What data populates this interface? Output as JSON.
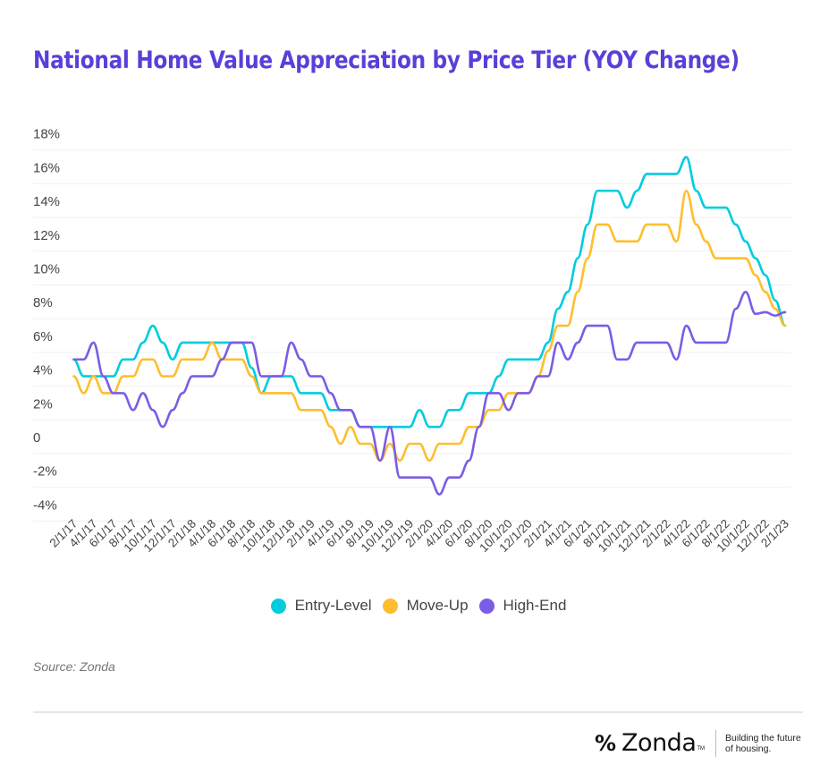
{
  "chart_data": {
    "type": "line",
    "title": "National Home Value Appreciation by Price Tier (YOY Change)",
    "xlabel": "",
    "ylabel": "",
    "ylim": [
      -4,
      18
    ],
    "y_ticks": [
      {
        "value": 18,
        "label": "18%"
      },
      {
        "value": 16,
        "label": "16%"
      },
      {
        "value": 14,
        "label": "14%"
      },
      {
        "value": 12,
        "label": "12%"
      },
      {
        "value": 10,
        "label": "10%"
      },
      {
        "value": 8,
        "label": "8%"
      },
      {
        "value": 6,
        "label": "6%"
      },
      {
        "value": 4,
        "label": "4%"
      },
      {
        "value": 2,
        "label": "2%"
      },
      {
        "value": 0,
        "label": "0"
      },
      {
        "value": -2,
        "label": "-2%"
      },
      {
        "value": -4,
        "label": "-4%"
      }
    ],
    "grid": true,
    "legend_position": "bottom-center",
    "x": [
      "2/1/17",
      "3/1/17",
      "4/1/17",
      "5/1/17",
      "6/1/17",
      "7/1/17",
      "8/1/17",
      "9/1/17",
      "10/1/17",
      "11/1/17",
      "12/1/17",
      "1/1/18",
      "2/1/18",
      "3/1/18",
      "4/1/18",
      "5/1/18",
      "6/1/18",
      "7/1/18",
      "8/1/18",
      "9/1/18",
      "10/1/18",
      "11/1/18",
      "12/1/18",
      "1/1/19",
      "2/1/19",
      "3/1/19",
      "4/1/19",
      "5/1/19",
      "6/1/19",
      "7/1/19",
      "8/1/19",
      "9/1/19",
      "10/1/19",
      "11/1/19",
      "12/1/19",
      "1/1/20",
      "2/1/20",
      "3/1/20",
      "4/1/20",
      "5/1/20",
      "6/1/20",
      "7/1/20",
      "8/1/20",
      "9/1/20",
      "10/1/20",
      "11/1/20",
      "12/1/20",
      "1/1/21",
      "2/1/21",
      "3/1/21",
      "4/1/21",
      "5/1/21",
      "6/1/21",
      "7/1/21",
      "8/1/21",
      "9/1/21",
      "10/1/21",
      "11/1/21",
      "12/1/21",
      "1/1/22",
      "2/1/22",
      "3/1/22",
      "4/1/22",
      "5/1/22",
      "6/1/22",
      "7/1/22",
      "8/1/22",
      "9/1/22",
      "10/1/22",
      "11/1/22",
      "12/1/22",
      "1/1/23",
      "2/1/23"
    ],
    "x_tick_labels": [
      "2/1/17",
      "4/1/17",
      "6/1/17",
      "8/1/17",
      "10/1/17",
      "12/1/17",
      "2/1/18",
      "4/1/18",
      "6/1/18",
      "8/1/18",
      "10/1/18",
      "12/1/18",
      "2/1/19",
      "4/1/19",
      "6/1/19",
      "8/1/19",
      "10/1/19",
      "12/1/19",
      "2/1/20",
      "4/1/20",
      "6/1/20",
      "8/1/20",
      "10/1/20",
      "12/1/20",
      "2/1/21",
      "4/1/21",
      "6/1/21",
      "8/1/21",
      "10/1/21",
      "12/1/21",
      "2/1/22",
      "4/1/22",
      "6/1/22",
      "8/1/22",
      "10/1/22",
      "12/1/22",
      "2/1/23"
    ],
    "series": [
      {
        "name": "Entry-Level",
        "color": "#00CCDD",
        "values": [
          5,
          4,
          4,
          4,
          4,
          5,
          5,
          6,
          7,
          6,
          5,
          6,
          6,
          6,
          6,
          6,
          6,
          6,
          4.5,
          3,
          4,
          4,
          4,
          3,
          3,
          3,
          2,
          2,
          2,
          1,
          1,
          1,
          1,
          1,
          1,
          2,
          1,
          1,
          2,
          2,
          3,
          3,
          3,
          4,
          5,
          5,
          5,
          5,
          6,
          8,
          9,
          11,
          13,
          15,
          15,
          15,
          14,
          15,
          16,
          16,
          16,
          16,
          17,
          15,
          14,
          14,
          14,
          13,
          12,
          11,
          10,
          8.5,
          7
        ]
      },
      {
        "name": "Move-Up",
        "color": "#FFBE2E",
        "values": [
          4,
          3,
          4,
          3,
          3,
          4,
          4,
          5,
          5,
          4,
          4,
          5,
          5,
          5,
          6,
          5,
          5,
          5,
          4,
          3,
          3,
          3,
          3,
          2,
          2,
          2,
          1,
          0,
          1,
          0,
          0,
          -1,
          0,
          -1,
          0,
          0,
          -1,
          0,
          0,
          0,
          1,
          1,
          2,
          2,
          3,
          3,
          3,
          4,
          5.5,
          7,
          7,
          9,
          11,
          13,
          13,
          12,
          12,
          12,
          13,
          13,
          13,
          12,
          15,
          13,
          12,
          11,
          11,
          11,
          11,
          10,
          9,
          8,
          7
        ]
      },
      {
        "name": "High-End",
        "color": "#7B5CE6",
        "values": [
          5,
          5,
          6,
          4,
          3,
          3,
          2,
          3,
          2,
          1,
          2,
          3,
          4,
          4,
          4,
          5,
          6,
          6,
          6,
          4,
          4,
          4,
          6,
          5,
          4,
          4,
          3,
          2,
          2,
          1,
          1,
          -1,
          1,
          -2,
          -2,
          -2,
          -2,
          -3,
          -2,
          -2,
          -1,
          1,
          3,
          3,
          2,
          3,
          3,
          4,
          4,
          6,
          5,
          6,
          7,
          7,
          7,
          5,
          5,
          6,
          6,
          6,
          6,
          5,
          7,
          6,
          6,
          6,
          6,
          8,
          9,
          7.7,
          7.8,
          7.6,
          7.8
        ]
      }
    ]
  },
  "legend": {
    "items": [
      {
        "label": "Entry-Level",
        "color": "#00CCDD"
      },
      {
        "label": "Move-Up",
        "color": "#FFBE2E"
      },
      {
        "label": "High-End",
        "color": "#7B5CE6"
      }
    ]
  },
  "source": "Source: Zonda",
  "brand": {
    "mark": "%",
    "name": "Zonda",
    "tm": "TM",
    "tagline_line1": "Building the future",
    "tagline_line2": "of housing."
  },
  "colors": {
    "title": "#5A3FD8"
  }
}
